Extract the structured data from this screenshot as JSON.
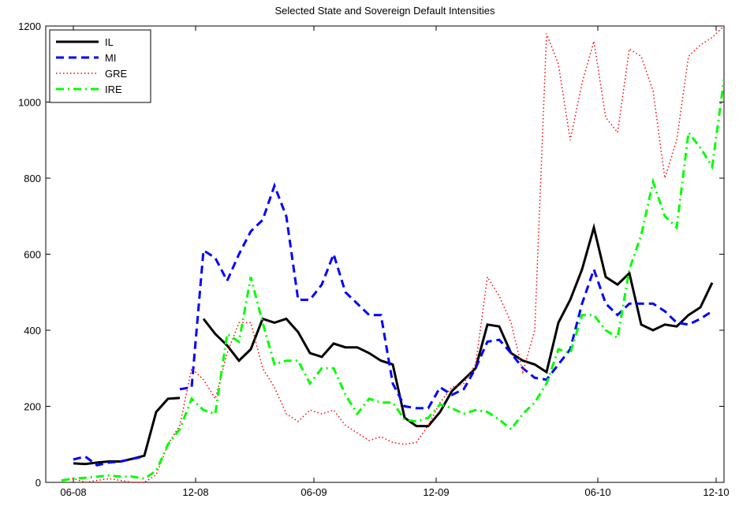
{
  "chart_data": {
    "type": "line",
    "title": "Selected State and Sovereign Default Intensities",
    "x": [
      4,
      7,
      10,
      13,
      16,
      19,
      22,
      25,
      28,
      31,
      34,
      37,
      40,
      43,
      46,
      49,
      52,
      55,
      58,
      61,
      64,
      67,
      70,
      73,
      76,
      79,
      82,
      85,
      88,
      91,
      94,
      97,
      100,
      103,
      106,
      109,
      112,
      115,
      118,
      121,
      124,
      127,
      130,
      133,
      136,
      139,
      142,
      145,
      148,
      151,
      154,
      157,
      160,
      163,
      166,
      169,
      172
    ],
    "xlim": [
      0,
      172
    ],
    "xticks": [
      {
        "value": 7,
        "label": "06-08"
      },
      {
        "value": 38,
        "label": "12-08"
      },
      {
        "value": 68,
        "label": "06-09"
      },
      {
        "value": 99,
        "label": "12-09"
      },
      {
        "value": 140,
        "label": "06-10"
      },
      {
        "value": 170,
        "label": "12-10"
      }
    ],
    "ylim": [
      0,
      1200
    ],
    "yticks": [
      0,
      200,
      400,
      600,
      800,
      1000,
      1200
    ],
    "legend": "top-left",
    "series": [
      {
        "name": "IL",
        "color": "#000000",
        "linestyle": "solid",
        "values": [
          null,
          50,
          48,
          52,
          55,
          55,
          62,
          70,
          185,
          220,
          222,
          null,
          430,
          390,
          360,
          320,
          350,
          430,
          420,
          430,
          395,
          340,
          330,
          365,
          355,
          355,
          340,
          320,
          310,
          170,
          148,
          148,
          185,
          240,
          270,
          300,
          415,
          410,
          340,
          320,
          310,
          290,
          420,
          480,
          560,
          670,
          540,
          520,
          550,
          415,
          400,
          415,
          410,
          440,
          460,
          525,
          null
        ]
      },
      {
        "name": "MI",
        "color": "#0000ff",
        "linestyle": "dashed",
        "values": [
          null,
          60,
          68,
          45,
          52,
          55,
          62,
          68,
          null,
          null,
          245,
          250,
          610,
          590,
          530,
          600,
          660,
          690,
          780,
          700,
          480,
          480,
          520,
          600,
          500,
          470,
          440,
          440,
          260,
          200,
          195,
          195,
          250,
          230,
          245,
          300,
          370,
          375,
          340,
          300,
          275,
          270,
          310,
          350,
          470,
          560,
          470,
          440,
          470,
          470,
          470,
          450,
          420,
          415,
          430,
          450,
          null
        ]
      },
      {
        "name": "GRE",
        "color": "#ff0000",
        "linestyle": "dotted",
        "values": [
          5,
          10,
          0,
          5,
          10,
          5,
          0,
          0,
          20,
          100,
          150,
          300,
          270,
          220,
          340,
          420,
          420,
          300,
          250,
          180,
          160,
          190,
          180,
          190,
          150,
          130,
          110,
          120,
          105,
          100,
          105,
          150,
          210,
          250,
          260,
          310,
          540,
          490,
          420,
          290,
          400,
          1180,
          1100,
          900,
          1050,
          1160,
          960,
          920,
          1140,
          1120,
          1030,
          800,
          900,
          1120,
          1150,
          1170,
          1200
        ]
      },
      {
        "name": "IRE",
        "color": "#00ff00",
        "linestyle": "dashdot",
        "values": [
          5,
          10,
          12,
          15,
          18,
          15,
          15,
          10,
          30,
          100,
          140,
          220,
          190,
          180,
          390,
          370,
          540,
          420,
          310,
          320,
          320,
          260,
          300,
          300,
          230,
          180,
          220,
          210,
          210,
          165,
          160,
          170,
          205,
          195,
          180,
          190,
          185,
          165,
          140,
          180,
          210,
          260,
          350,
          340,
          440,
          440,
          400,
          380,
          560,
          650,
          790,
          700,
          670,
          920,
          880,
          830,
          1060
        ]
      }
    ]
  }
}
